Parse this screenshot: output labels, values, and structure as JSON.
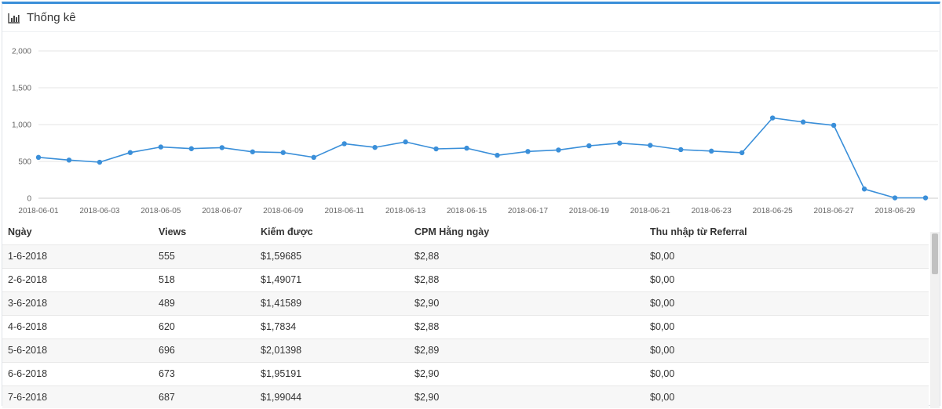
{
  "panel": {
    "title": "Thống kê",
    "icon": "bar-chart-icon",
    "accent_color": "#3a8fd9"
  },
  "chart_data": {
    "type": "line",
    "title": "",
    "xlabel": "",
    "ylabel": "",
    "ylim": [
      0,
      2000
    ],
    "y_ticks": [
      "0",
      "500",
      "1,000",
      "1,500",
      "2,000"
    ],
    "x_tick_labels": [
      "2018-06-01",
      "2018-06-03",
      "2018-06-05",
      "2018-06-07",
      "2018-06-09",
      "2018-06-11",
      "2018-06-13",
      "2018-06-15",
      "2018-06-17",
      "2018-06-19",
      "2018-06-21",
      "2018-06-23",
      "2018-06-25",
      "2018-06-27",
      "2018-06-29"
    ],
    "x": [
      "2018-06-01",
      "2018-06-02",
      "2018-06-03",
      "2018-06-04",
      "2018-06-05",
      "2018-06-06",
      "2018-06-07",
      "2018-06-08",
      "2018-06-09",
      "2018-06-10",
      "2018-06-11",
      "2018-06-12",
      "2018-06-13",
      "2018-06-14",
      "2018-06-15",
      "2018-06-16",
      "2018-06-17",
      "2018-06-18",
      "2018-06-19",
      "2018-06-20",
      "2018-06-21",
      "2018-06-22",
      "2018-06-23",
      "2018-06-24",
      "2018-06-25",
      "2018-06-26",
      "2018-06-27",
      "2018-06-28",
      "2018-06-29",
      "2018-06-30"
    ],
    "series": [
      {
        "values": [
          555,
          518,
          489,
          620,
          696,
          673,
          687,
          630,
          620,
          555,
          740,
          690,
          765,
          670,
          680,
          583,
          635,
          655,
          712,
          748,
          718,
          660,
          640,
          618,
          1090,
          1035,
          990,
          125,
          5,
          5
        ],
        "color": "#3a8fd9"
      }
    ],
    "grid": true,
    "legend": "none"
  },
  "table": {
    "headers": [
      "Ngày",
      "Views",
      "Kiếm được",
      "CPM Hằng ngày",
      "Thu nhập từ Referral"
    ],
    "rows": [
      [
        "1-6-2018",
        "555",
        "$1,59685",
        "$2,88",
        "$0,00"
      ],
      [
        "2-6-2018",
        "518",
        "$1,49071",
        "$2,88",
        "$0,00"
      ],
      [
        "3-6-2018",
        "489",
        "$1,41589",
        "$2,90",
        "$0,00"
      ],
      [
        "4-6-2018",
        "620",
        "$1,7834",
        "$2,88",
        "$0,00"
      ],
      [
        "5-6-2018",
        "696",
        "$2,01398",
        "$2,89",
        "$0,00"
      ],
      [
        "6-6-2018",
        "673",
        "$1,95191",
        "$2,90",
        "$0,00"
      ],
      [
        "7-6-2018",
        "687",
        "$1,99044",
        "$2,90",
        "$0,00"
      ]
    ]
  }
}
